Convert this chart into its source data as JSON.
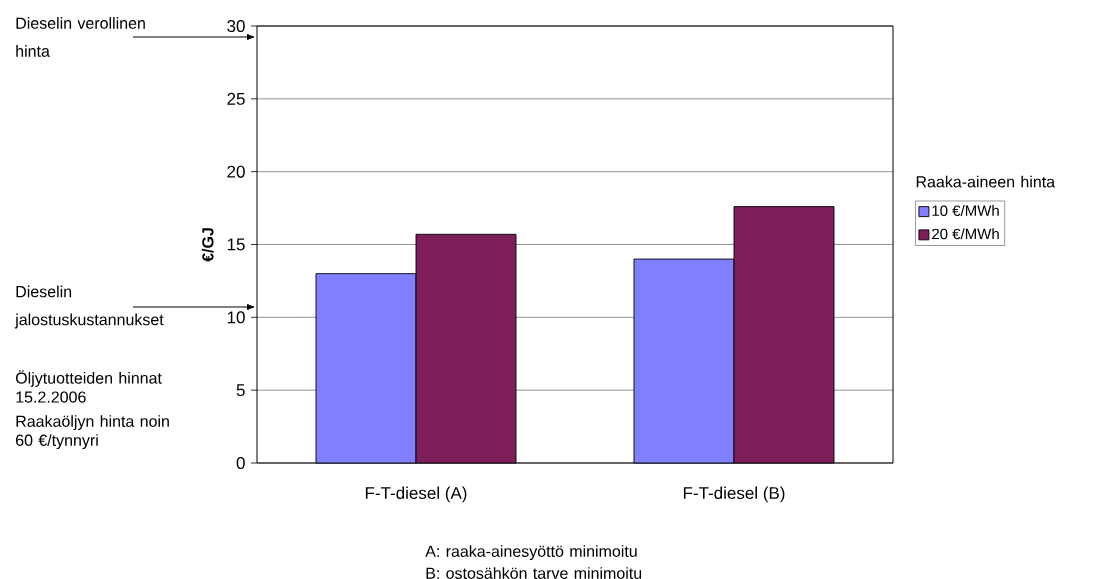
{
  "chart_data": {
    "type": "bar",
    "ylabel": "€/GJ",
    "legend_title": "Raaka-aineen hinta",
    "categories": [
      "F-T-diesel (A)",
      "F-T-diesel (B)"
    ],
    "series": [
      {
        "name": "10 €/MWh",
        "color": "#8080ff",
        "values": [
          13.0,
          14.0
        ]
      },
      {
        "name": "20 €/MWh",
        "color": "#7f1f5a",
        "values": [
          15.7,
          17.6
        ]
      }
    ],
    "ylim": [
      0,
      30
    ],
    "yticks": [
      0,
      5,
      10,
      15,
      20,
      25,
      30
    ],
    "grid": "y",
    "legend": "right",
    "annotations": [
      "Dieselin verollinen hinta",
      "Dieselin jalostuskustannukset",
      "Öljytuotteiden hinnat 15.2.2006",
      "Raakaöljyn hinta noin 60 €/tynnyri",
      "A: raaka-ainesyöttö minimoitu",
      "B: ostosähkön tarve minimoitu"
    ]
  }
}
